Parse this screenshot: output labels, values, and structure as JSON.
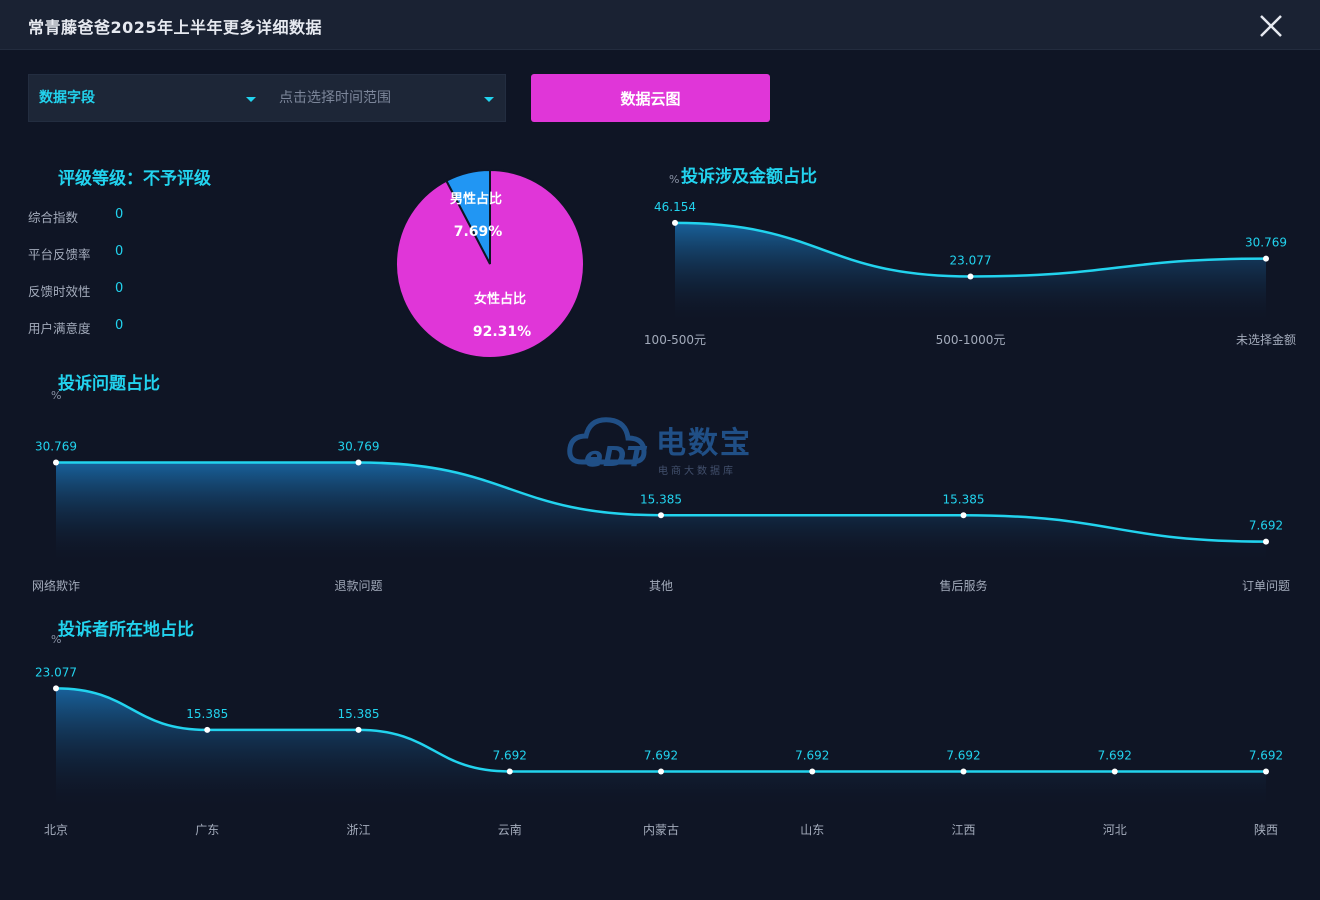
{
  "window": {
    "title": "常青藤爸爸2025年上半年更多详细数据"
  },
  "filters": {
    "field_label": "数据字段",
    "time_label": "点击选择时间范围",
    "cloud_button": "数据云图"
  },
  "rating": {
    "title": "评级等级：不予评级",
    "metrics": [
      {
        "label": "综合指数",
        "value": "0"
      },
      {
        "label": "平台反馈率",
        "value": "0"
      },
      {
        "label": "反馈时效性",
        "value": "0"
      },
      {
        "label": "用户满意度",
        "value": "0"
      }
    ]
  },
  "watermark": {
    "brand": "电数宝",
    "mark": "eDT",
    "sub": "电商大数据库"
  },
  "colors": {
    "accent": "#22d3ee",
    "magenta": "#e036d8",
    "blue": "#2196f3",
    "background": "#0f1525"
  },
  "chart_data": [
    {
      "type": "pie",
      "slices": [
        {
          "label": "男性占比",
          "value": 7.69,
          "display": "7.69%",
          "color": "#2196f3"
        },
        {
          "label": "女性占比",
          "value": 92.31,
          "display": "92.31%",
          "color": "#e036d8"
        }
      ]
    },
    {
      "type": "area",
      "title": "投诉涉及金额占比",
      "ylabel": "%",
      "categories": [
        "100-500元",
        "500-1000元",
        "未选择金额"
      ],
      "values": [
        46.154,
        23.077,
        30.769
      ],
      "labels": [
        "46.154",
        "23.077",
        "30.769"
      ],
      "ylim": [
        0,
        50
      ]
    },
    {
      "type": "area",
      "title": "投诉问题占比",
      "ylabel": "%",
      "categories": [
        "网络欺诈",
        "退款问题",
        "其他",
        "售后服务",
        "订单问题"
      ],
      "values": [
        30.769,
        30.769,
        15.385,
        15.385,
        7.692
      ],
      "labels": [
        "30.769",
        "30.769",
        "15.385",
        "15.385",
        "7.692"
      ],
      "ylim": [
        0,
        35
      ]
    },
    {
      "type": "area",
      "title": "投诉者所在地占比",
      "ylabel": "%",
      "categories": [
        "北京",
        "广东",
        "浙江",
        "云南",
        "内蒙古",
        "山东",
        "江西",
        "河北",
        "陕西"
      ],
      "values": [
        23.077,
        15.385,
        15.385,
        7.692,
        7.692,
        7.692,
        7.692,
        7.692,
        7.692
      ],
      "labels": [
        "23.077",
        "15.385",
        "15.385",
        "7.692",
        "7.692",
        "7.692",
        "7.692",
        "7.692",
        "7.692"
      ],
      "ylim": [
        0,
        25
      ]
    }
  ]
}
